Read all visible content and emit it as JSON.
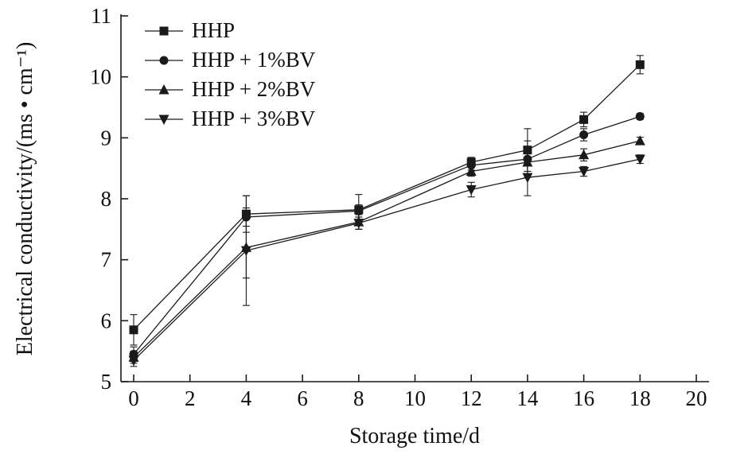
{
  "chart_data": {
    "type": "line",
    "title": "",
    "xlabel": "Storage time/d",
    "ylabel": "Electrical conductivity/(ms • cm⁻¹)",
    "xlim": [
      -0.5,
      20.5
    ],
    "ylim": [
      5,
      11
    ],
    "xticks": [
      0,
      2,
      4,
      6,
      8,
      10,
      12,
      14,
      16,
      18,
      20
    ],
    "yticks": [
      5,
      6,
      7,
      8,
      9,
      10,
      11
    ],
    "grid": false,
    "legend_position": "top-left-inside",
    "line_color": "#1a1a1a",
    "x": [
      0,
      4,
      8,
      12,
      14,
      16,
      18
    ],
    "series": [
      {
        "name": "HHP",
        "marker": "square",
        "values": [
          5.85,
          7.75,
          7.82,
          8.6,
          8.8,
          9.3,
          10.2
        ],
        "errors": [
          0.25,
          0.3,
          0.25,
          0.08,
          0.35,
          0.12,
          0.15
        ]
      },
      {
        "name": "HHP + 1%BV",
        "marker": "circle",
        "values": [
          5.45,
          7.7,
          7.8,
          8.55,
          8.65,
          9.05,
          9.35
        ],
        "errors": [
          0.12,
          0.15,
          0.1,
          0.08,
          0.3,
          0.1,
          0.05
        ]
      },
      {
        "name": "HHP + 2%BV",
        "marker": "triangle-up",
        "values": [
          5.4,
          7.2,
          7.62,
          8.45,
          8.6,
          8.72,
          8.95
        ],
        "errors": [
          0.1,
          0.5,
          0.12,
          0.08,
          0.15,
          0.1,
          0.06
        ]
      },
      {
        "name": "HHP + 3%BV",
        "marker": "triangle-down",
        "values": [
          5.35,
          7.15,
          7.6,
          8.15,
          8.35,
          8.45,
          8.65
        ],
        "errors": [
          0.1,
          0.9,
          0.1,
          0.12,
          0.3,
          0.08,
          0.07
        ]
      }
    ]
  }
}
